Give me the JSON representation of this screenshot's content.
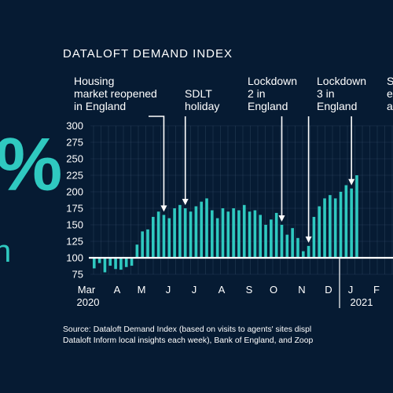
{
  "stat": {
    "value": "%",
    "line1": "n",
    "line2": ""
  },
  "chart_data": {
    "type": "bar",
    "title": "DATALOFT DEMAND INDEX",
    "baseline": 100,
    "ylim": [
      75,
      300
    ],
    "yticks": [
      "300",
      "275",
      "250",
      "225",
      "200",
      "175",
      "150",
      "125",
      "100",
      "75"
    ],
    "x_month_labels": [
      "Mar",
      "A",
      "M",
      "J",
      "J",
      "A",
      "S",
      "O",
      "N",
      "D",
      "J",
      "F"
    ],
    "x_year_labels": [
      "2020",
      "2021"
    ],
    "values": [
      84,
      92,
      78,
      88,
      83,
      82,
      86,
      88,
      120,
      140,
      143,
      162,
      170,
      165,
      160,
      175,
      180,
      175,
      170,
      178,
      185,
      190,
      172,
      160,
      175,
      170,
      175,
      172,
      180,
      170,
      172,
      165,
      150,
      158,
      168,
      150,
      135,
      145,
      130,
      110,
      118,
      162,
      178,
      190,
      195,
      190,
      200,
      210,
      205,
      225
    ],
    "annotations": [
      {
        "lines": [
          "Housing",
          "market reopened",
          "in England"
        ],
        "bar": 13
      },
      {
        "lines": [
          "SDLT",
          "holiday"
        ],
        "bar": 17
      },
      {
        "lines": [
          "Lockdown",
          "2 in",
          "England"
        ],
        "bar": 35
      },
      {
        "lines": [
          "Lockdown",
          "3 in",
          "England"
        ],
        "bar": 40
      },
      {
        "lines": [
          "S",
          "e",
          "a"
        ],
        "bar": 48
      }
    ]
  },
  "source": {
    "line1": "Source: Dataloft Demand Index (based on visits to agents' sites displ",
    "line2": "Dataloft Inform local insights each week), Bank of England, and Zoop"
  },
  "colors": {
    "background": "#061b33",
    "bar": "#2fc9c0",
    "accent": "#2fc9c0",
    "grid": "#3b5570"
  }
}
